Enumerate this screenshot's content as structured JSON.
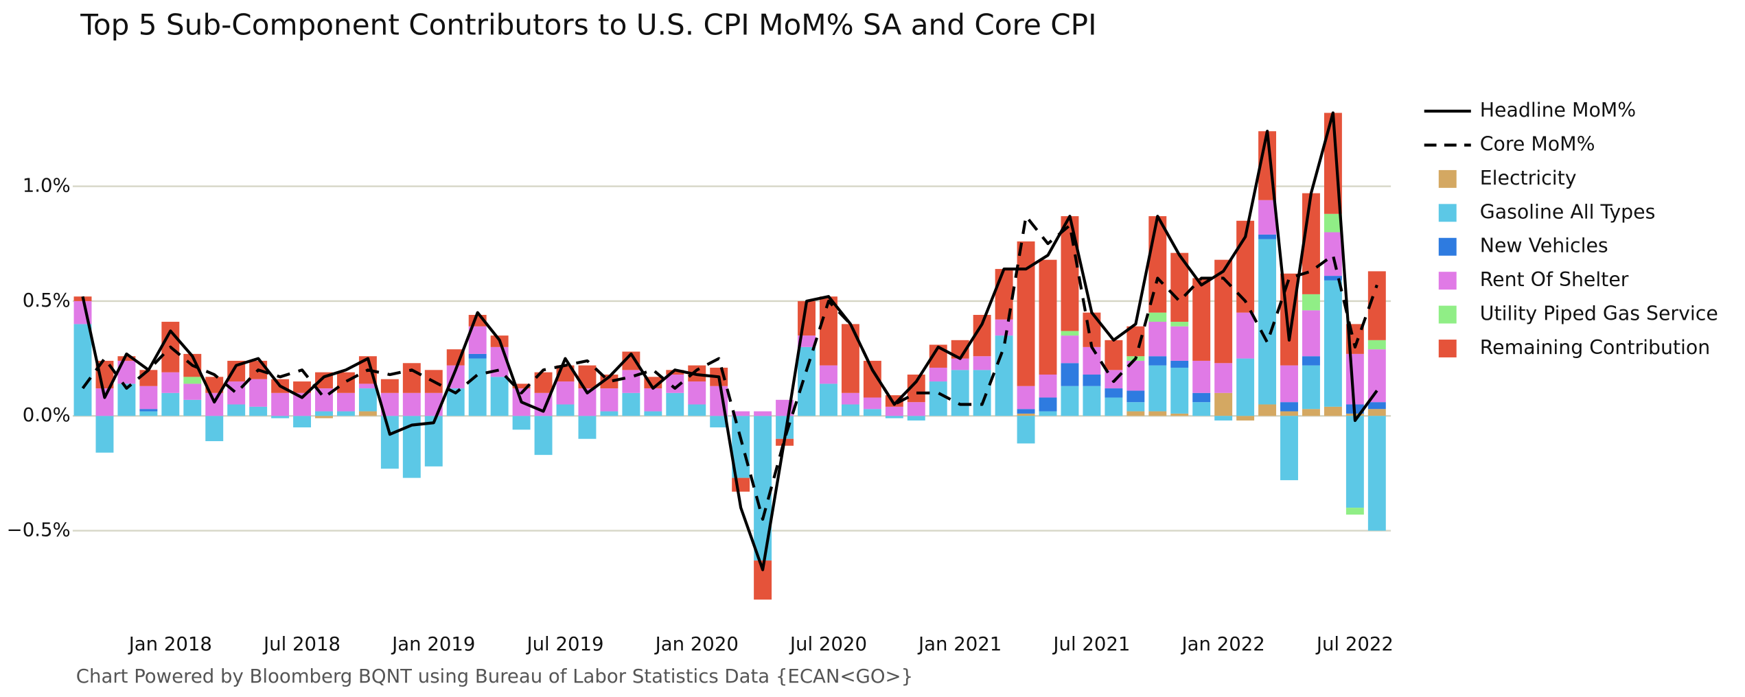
{
  "chart_data": {
    "type": "bar",
    "stacked": true,
    "title": "Top 5 Sub-Component Contributors to U.S. CPI MoM% SA and Core CPI",
    "source": "Chart Powered by Bloomberg BQNT using Bureau of Labor Statistics Data    {ECAN<GO>}",
    "categories": [
      null,
      null,
      null,
      null,
      "Jan 2018",
      null,
      null,
      null,
      null,
      null,
      "Jul 2018",
      null,
      null,
      null,
      null,
      null,
      "Jan 2019",
      null,
      null,
      null,
      null,
      null,
      "Jul 2019",
      null,
      null,
      null,
      null,
      null,
      "Jan 2020",
      null,
      null,
      null,
      null,
      null,
      "Jul 2020",
      null,
      null,
      null,
      null,
      null,
      "Jan 2021",
      null,
      null,
      null,
      null,
      null,
      "Jul 2021",
      null,
      null,
      null,
      null,
      null,
      "Jan 2022",
      null,
      null,
      null,
      null,
      null,
      "Jul 2022",
      null
    ],
    "ylim": [
      -0.9,
      1.4
    ],
    "yticks": [
      {
        "value": -0.5,
        "label": "−0.5%"
      },
      {
        "value": 0,
        "label": "0.0%"
      },
      {
        "value": 0.5,
        "label": "0.5%"
      },
      {
        "value": 1.0,
        "label": "1.0%"
      }
    ],
    "grid": true,
    "legend": "right",
    "series": [
      {
        "name": "Headline MoM%",
        "type": "line",
        "color": "#000000",
        "dash": false,
        "values": [
          0.52,
          0.08,
          0.27,
          0.2,
          0.37,
          0.26,
          0.06,
          0.22,
          0.25,
          0.13,
          0.08,
          0.17,
          0.2,
          0.25,
          -0.08,
          -0.04,
          -0.03,
          0.2,
          0.45,
          0.33,
          0.06,
          0.02,
          0.25,
          0.1,
          0.17,
          0.27,
          0.12,
          0.2,
          0.18,
          0.17,
          -0.4,
          -0.67,
          -0.1,
          0.5,
          0.52,
          0.4,
          0.2,
          0.05,
          0.15,
          0.3,
          0.25,
          0.4,
          0.64,
          0.64,
          0.7,
          0.87,
          0.45,
          0.33,
          0.4,
          0.87,
          0.7,
          0.57,
          0.63,
          0.78,
          1.24,
          0.33,
          0.97,
          1.32,
          -0.02,
          0.11
        ]
      },
      {
        "name": "Core MoM%",
        "type": "line",
        "color": "#000000",
        "dash": true,
        "values": [
          0.12,
          0.25,
          0.12,
          0.2,
          0.3,
          0.22,
          0.18,
          0.1,
          0.2,
          0.17,
          0.2,
          0.08,
          0.15,
          0.2,
          0.18,
          0.2,
          0.15,
          0.1,
          0.18,
          0.2,
          0.1,
          0.2,
          0.22,
          0.24,
          0.15,
          0.17,
          0.2,
          0.12,
          0.2,
          0.25,
          -0.1,
          -0.45,
          -0.1,
          0.2,
          0.5,
          0.4,
          0.2,
          0.05,
          0.1,
          0.1,
          0.05,
          0.05,
          0.3,
          0.87,
          0.75,
          0.83,
          0.3,
          0.15,
          0.25,
          0.6,
          0.5,
          0.6,
          0.6,
          0.5,
          0.32,
          0.6,
          0.63,
          0.7,
          0.3,
          0.57
        ]
      },
      {
        "name": "Electricity",
        "color": "#d4a862",
        "values": [
          0,
          0,
          0,
          0,
          0,
          0,
          0,
          0,
          0,
          0,
          0,
          -0.01,
          0,
          0.02,
          0,
          0,
          0,
          0,
          0,
          0,
          0,
          0,
          0,
          0,
          0,
          0,
          0,
          0,
          0,
          0,
          0,
          0,
          0,
          0,
          0,
          0,
          0,
          0,
          0,
          0,
          0,
          0,
          0,
          0.01,
          0,
          0,
          0,
          0,
          0.02,
          0.02,
          0.01,
          0,
          0.1,
          -0.02,
          0.05,
          0.02,
          0.03,
          0.04,
          0.01,
          0.03
        ]
      },
      {
        "name": "Gasoline All Types",
        "color": "#5cc8e6",
        "values": [
          0.4,
          -0.16,
          0.14,
          0.02,
          0.1,
          0.07,
          -0.11,
          0.05,
          0.04,
          -0.01,
          -0.05,
          0.02,
          0.02,
          0.1,
          -0.23,
          -0.27,
          -0.22,
          0.12,
          0.25,
          0.17,
          -0.06,
          -0.17,
          0.05,
          -0.1,
          0.02,
          0.1,
          0.02,
          0.1,
          0.05,
          -0.05,
          -0.27,
          -0.63,
          -0.1,
          0.3,
          0.14,
          0.05,
          0.03,
          -0.01,
          -0.02,
          0.15,
          0.2,
          0.2,
          0.35,
          -0.12,
          0.02,
          0.13,
          0.13,
          0.08,
          0.04,
          0.2,
          0.2,
          0.06,
          -0.02,
          0.25,
          0.72,
          -0.28,
          0.19,
          0.55,
          -0.4,
          -0.5
        ]
      },
      {
        "name": "New Vehicles",
        "color": "#2e7be0",
        "values": [
          0,
          0,
          0,
          0.01,
          0,
          0,
          0,
          0,
          0,
          0,
          0,
          0,
          0,
          0,
          0,
          0,
          0,
          0,
          0.02,
          0,
          0,
          0,
          0,
          0,
          0,
          0,
          0,
          0,
          0,
          0,
          0,
          0,
          0,
          0,
          0,
          0,
          0,
          0,
          0,
          0,
          0,
          0,
          0,
          0.02,
          0.06,
          0.1,
          0.05,
          0.04,
          0.05,
          0.04,
          0.03,
          0.04,
          0,
          0,
          0.02,
          0.04,
          0.04,
          0.02,
          0.04,
          0.03
        ]
      },
      {
        "name": "Rent Of Shelter",
        "color": "#e07ae6",
        "values": [
          0.1,
          0.12,
          0.1,
          0.1,
          0.09,
          0.07,
          0.1,
          0.1,
          0.12,
          0.1,
          0.1,
          0.1,
          0.08,
          0.02,
          0.1,
          0.1,
          0.1,
          0.1,
          0.12,
          0.13,
          0.12,
          0.1,
          0.1,
          0.12,
          0.1,
          0.1,
          0.1,
          0.08,
          0.1,
          0.13,
          0.02,
          0.02,
          0.07,
          0.05,
          0.08,
          0.05,
          0.05,
          0.04,
          0.06,
          0.06,
          0.05,
          0.06,
          0.07,
          0.1,
          0.1,
          0.12,
          0.12,
          0.08,
          0.13,
          0.15,
          0.15,
          0.14,
          0.13,
          0.2,
          0.15,
          0.16,
          0.2,
          0.19,
          0.22,
          0.23
        ]
      },
      {
        "name": "Utility Piped Gas Service",
        "color": "#90ee86",
        "values": [
          0,
          0,
          0,
          0,
          0,
          0.03,
          0,
          0,
          0,
          0,
          0,
          0,
          0,
          0,
          0,
          0,
          0,
          0,
          0,
          0,
          0,
          0,
          0,
          0,
          0,
          0,
          0,
          0,
          0,
          0,
          0,
          0,
          0,
          0,
          0,
          0,
          0,
          0,
          0,
          0,
          0,
          0,
          0,
          0,
          0,
          0.02,
          0,
          0,
          0.02,
          0.04,
          0.02,
          0,
          0,
          0,
          0,
          0,
          0.07,
          0.08,
          -0.03,
          0.04
        ]
      },
      {
        "name": "Remaining Contribution",
        "color": "#e5533a",
        "values": [
          0.02,
          0.12,
          0.02,
          0.07,
          0.22,
          0.1,
          0.07,
          0.09,
          0.08,
          0.06,
          0.05,
          0.07,
          0.09,
          0.12,
          0.06,
          0.13,
          0.1,
          0.07,
          0.05,
          0.05,
          0.02,
          0.09,
          0.07,
          0.1,
          0.06,
          0.08,
          0.05,
          0.02,
          0.07,
          0.08,
          -0.06,
          -0.17,
          -0.03,
          0.15,
          0.3,
          0.3,
          0.16,
          0.05,
          0.12,
          0.1,
          0.08,
          0.18,
          0.22,
          0.63,
          0.5,
          0.5,
          0.15,
          0.13,
          0.13,
          0.42,
          0.3,
          0.36,
          0.45,
          0.4,
          0.3,
          0.4,
          0.44,
          0.44,
          0.13,
          0.3
        ]
      }
    ]
  }
}
